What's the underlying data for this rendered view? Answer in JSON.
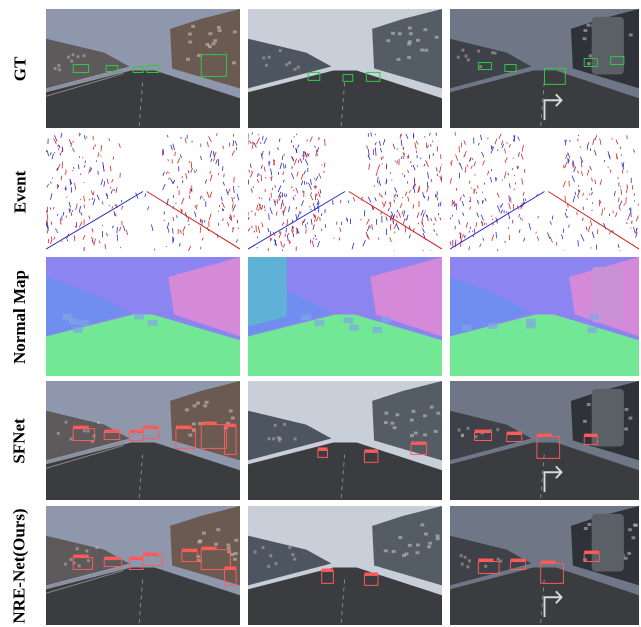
{
  "rows": [
    {
      "label": "GT",
      "kind": "rgb",
      "box": "#2ecc40"
    },
    {
      "label": "Event",
      "kind": "event"
    },
    {
      "label": "Normal Map",
      "kind": "normal"
    },
    {
      "label": "SFNet",
      "kind": "rgb",
      "box": "#ff5a5a"
    },
    {
      "label": "NRE-Net(Ours)",
      "kind": "rgb",
      "box": "#ff5a5a"
    }
  ],
  "columns": 3,
  "colors": {
    "gt_box": "#2ecc40",
    "pred_box": "#ff5a5a",
    "event_pos": "#d42020",
    "event_neg": "#2626c8",
    "normal_ground": "#72e896",
    "normal_sky": "#8c84f0"
  }
}
